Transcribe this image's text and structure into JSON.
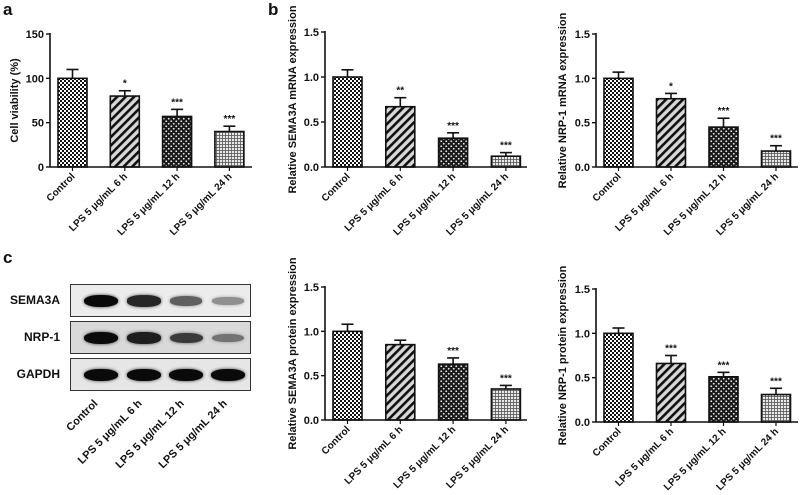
{
  "panels": {
    "a": {
      "letter": "a"
    },
    "b": {
      "letter": "b"
    },
    "c": {
      "letter": "c"
    }
  },
  "categories": [
    "Control",
    "LPS 5 μg/mL 6 h",
    "LPS 5 μg/mL 12 h",
    "LPS 5 μg/mL 24 h"
  ],
  "western_blot": {
    "rows": [
      {
        "label": "SEMA3A",
        "intensities": [
          1.0,
          0.85,
          0.55,
          0.3
        ],
        "bg": "#ececec"
      },
      {
        "label": "NRP-1",
        "intensities": [
          1.0,
          0.9,
          0.75,
          0.45
        ],
        "bg": "#d9d9d9"
      },
      {
        "label": "GAPDH",
        "intensities": [
          1.0,
          1.0,
          1.0,
          1.0
        ],
        "bg": "#e6e6e6"
      }
    ],
    "lanes": [
      "Control",
      "LPS 5 μg/mL 6 h",
      "LPS 5 μg/mL 12 h",
      "LPS 5 μg/mL 24 h"
    ]
  },
  "chart_data": [
    {
      "id": "a",
      "type": "bar",
      "title": "",
      "xlabel": "",
      "ylabel": "Cell viability (%)",
      "categories": [
        "Control",
        "LPS 5 μg/mL 6 h",
        "LPS 5 μg/mL 12 h",
        "LPS 5 μg/mL 24 h"
      ],
      "values": [
        100,
        80,
        57,
        40
      ],
      "errors": [
        10,
        6,
        8,
        6
      ],
      "significance": [
        "",
        "*",
        "***",
        "***"
      ],
      "ylim": [
        0,
        150
      ],
      "yticks": [
        "0",
        "50",
        "100",
        "150"
      ],
      "ytick_values": [
        0,
        50,
        100,
        150
      ],
      "grid": false,
      "patterns": [
        "checker",
        "diagonal",
        "dots",
        "grid"
      ]
    },
    {
      "id": "b1",
      "type": "bar",
      "title": "",
      "xlabel": "",
      "ylabel": "Relative SEMA3A mRNA expression",
      "categories": [
        "Control",
        "LPS 5 μg/mL 6 h",
        "LPS 5 μg/mL 12 h",
        "LPS 5 μg/mL 24 h"
      ],
      "values": [
        1.0,
        0.67,
        0.32,
        0.12
      ],
      "errors": [
        0.08,
        0.1,
        0.06,
        0.04
      ],
      "significance": [
        "",
        "**",
        "***",
        "***"
      ],
      "ylim": [
        0,
        1.5
      ],
      "yticks": [
        "0.0",
        "0.5",
        "1.0",
        "1.5"
      ],
      "ytick_values": [
        0,
        0.5,
        1.0,
        1.5
      ],
      "grid": false,
      "patterns": [
        "checker",
        "diagonal",
        "dots",
        "grid"
      ]
    },
    {
      "id": "b2",
      "type": "bar",
      "title": "",
      "xlabel": "",
      "ylabel": "Relative NRP-1 mRNA expression",
      "categories": [
        "Control",
        "LPS 5 μg/mL 6 h",
        "LPS 5 μg/mL 12 h",
        "LPS 5 μg/mL 24 h"
      ],
      "values": [
        1.0,
        0.77,
        0.45,
        0.18
      ],
      "errors": [
        0.07,
        0.06,
        0.1,
        0.06
      ],
      "significance": [
        "",
        "*",
        "***",
        "***"
      ],
      "ylim": [
        0,
        1.5
      ],
      "yticks": [
        "0.0",
        "0.5",
        "1.0",
        "1.5"
      ],
      "ytick_values": [
        0,
        0.5,
        1.0,
        1.5
      ],
      "grid": false,
      "patterns": [
        "checker",
        "diagonal",
        "dots",
        "grid"
      ]
    },
    {
      "id": "c1",
      "type": "bar",
      "title": "",
      "xlabel": "",
      "ylabel": "Relative SEMA3A protein expression",
      "categories": [
        "Control",
        "LPS 5 μg/mL 6 h",
        "LPS 5 μg/mL 12 h",
        "LPS 5 μg/mL 24 h"
      ],
      "values": [
        1.0,
        0.85,
        0.63,
        0.35
      ],
      "errors": [
        0.08,
        0.05,
        0.07,
        0.04
      ],
      "significance": [
        "",
        "",
        "***",
        "***"
      ],
      "ylim": [
        0,
        1.5
      ],
      "yticks": [
        "0.0",
        "0.5",
        "1.0",
        "1.5"
      ],
      "ytick_values": [
        0,
        0.5,
        1.0,
        1.5
      ],
      "grid": false,
      "patterns": [
        "checker",
        "diagonal",
        "dots",
        "grid"
      ]
    },
    {
      "id": "c2",
      "type": "bar",
      "title": "",
      "xlabel": "",
      "ylabel": "Relative NRP-1 protein expression",
      "categories": [
        "Control",
        "LPS 5 μg/mL 6 h",
        "LPS 5 μg/mL 12 h",
        "LPS 5 μg/mL 24 h"
      ],
      "values": [
        1.0,
        0.66,
        0.51,
        0.31
      ],
      "errors": [
        0.06,
        0.09,
        0.05,
        0.07
      ],
      "significance": [
        "",
        "***",
        "***",
        "***"
      ],
      "ylim": [
        0,
        1.5
      ],
      "yticks": [
        "0.0",
        "0.5",
        "1.0",
        "1.5"
      ],
      "ytick_values": [
        0,
        0.5,
        1.0,
        1.5
      ],
      "grid": false,
      "patterns": [
        "checker",
        "diagonal",
        "dots",
        "grid"
      ]
    }
  ]
}
